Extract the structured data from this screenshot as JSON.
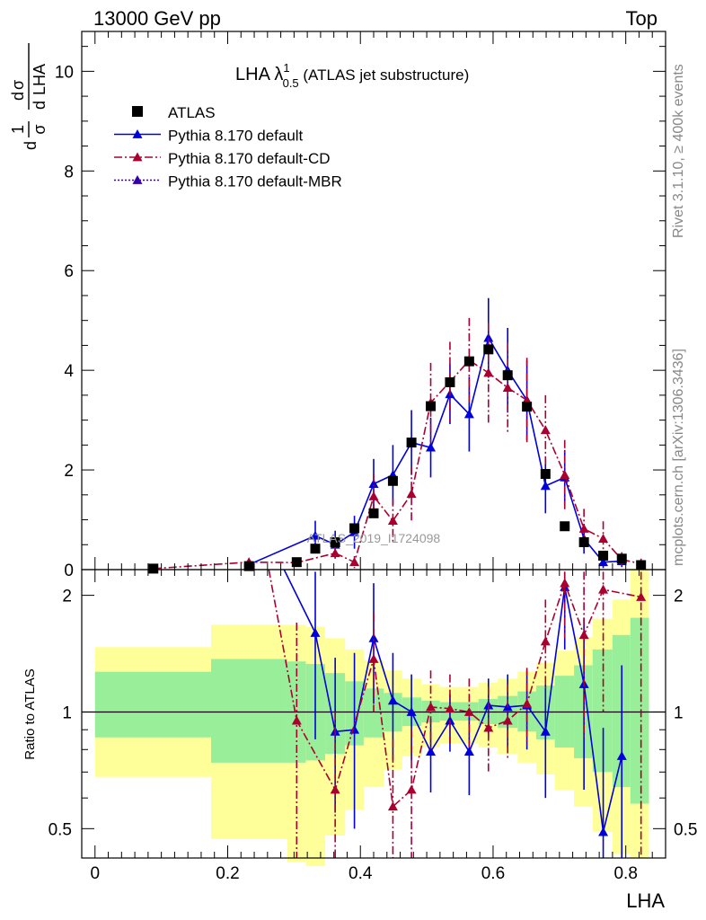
{
  "header": {
    "left": "13000 GeV pp",
    "right": "Top"
  },
  "side": {
    "rivet": "Rivet 3.1.10, ≥ 400k events",
    "mcplots": "mcplots.cern.ch [arXiv:1306.3436]"
  },
  "watermark": "ATLAS_2019_I1724098",
  "chart_data": {
    "type": "scatter",
    "title": "LHA λ",
    "title_sup": "1",
    "title_sub": "0.5",
    "title_suffix": " (ATLAS jet substructure)",
    "xlabel": "LHA",
    "ylabel": {
      "num_d": "d",
      "num_sigma": "σ",
      "prefix_1": "1",
      "prefix_sigma": "σ",
      "prefix_d": "d",
      "den_d": "d",
      "den_var": "LHA"
    },
    "ratio_ylabel": "Ratio to ATLAS",
    "xlim": [
      -0.02,
      0.86
    ],
    "ylim": [
      0,
      10.8
    ],
    "ratio_ylim": [
      0.42,
      2.33
    ],
    "x_ticks": [
      {
        "v": 0,
        "label": "0"
      },
      {
        "v": 0.2,
        "label": "0.2"
      },
      {
        "v": 0.4,
        "label": "0.4"
      },
      {
        "v": 0.6,
        "label": "0.6"
      },
      {
        "v": 0.8,
        "label": "0.8"
      }
    ],
    "y_ticks": [
      {
        "v": 0,
        "label": "0"
      },
      {
        "v": 2,
        "label": "2"
      },
      {
        "v": 4,
        "label": "4"
      },
      {
        "v": 6,
        "label": "6"
      },
      {
        "v": 8,
        "label": "8"
      },
      {
        "v": 10,
        "label": "10"
      }
    ],
    "ratio_ticks": [
      {
        "v": 0.5,
        "label": "0.5"
      },
      {
        "v": 1,
        "label": "1"
      },
      {
        "v": 2,
        "label": "2"
      }
    ],
    "legend": [
      {
        "label": "ATLAS",
        "color": "#000000",
        "style": "square"
      },
      {
        "label": "Pythia 8.170 default",
        "color": "#0000dd",
        "style": "solid"
      },
      {
        "label": "Pythia 8.170 default-CD",
        "color": "#aa0030",
        "style": "dashdot"
      },
      {
        "label": "Pythia 8.170 default-MBR",
        "color": "#3300aa",
        "style": "dotted"
      }
    ],
    "bands": [
      {
        "x0": 0.0,
        "x1": 0.175,
        "y_lo": 0.68,
        "y_hi": 1.47,
        "g_lo": 0.86,
        "g_hi": 1.27
      },
      {
        "x0": 0.175,
        "x1": 0.29,
        "y_lo": 0.47,
        "y_hi": 1.68,
        "g_lo": 0.74,
        "g_hi": 1.37
      },
      {
        "x0": 0.29,
        "x1": 0.318,
        "y_lo": 0.41,
        "y_hi": 1.68,
        "g_lo": 0.74,
        "g_hi": 1.35
      },
      {
        "x0": 0.318,
        "x1": 0.347,
        "y_lo": 0.4,
        "y_hi": 1.66,
        "g_lo": 0.75,
        "g_hi": 1.33
      },
      {
        "x0": 0.347,
        "x1": 0.377,
        "y_lo": 0.48,
        "y_hi": 1.55,
        "g_lo": 0.78,
        "g_hi": 1.26
      },
      {
        "x0": 0.377,
        "x1": 0.405,
        "y_lo": 0.56,
        "y_hi": 1.45,
        "g_lo": 0.82,
        "g_hi": 1.2
      },
      {
        "x0": 0.405,
        "x1": 0.435,
        "y_lo": 0.64,
        "y_hi": 1.36,
        "g_lo": 0.86,
        "g_hi": 1.15
      },
      {
        "x0": 0.435,
        "x1": 0.463,
        "y_lo": 0.71,
        "y_hi": 1.28,
        "g_lo": 0.89,
        "g_hi": 1.12
      },
      {
        "x0": 0.463,
        "x1": 0.492,
        "y_lo": 0.77,
        "y_hi": 1.22,
        "g_lo": 0.92,
        "g_hi": 1.09
      },
      {
        "x0": 0.492,
        "x1": 0.52,
        "y_lo": 0.81,
        "y_hi": 1.18,
        "g_lo": 0.94,
        "g_hi": 1.07
      },
      {
        "x0": 0.52,
        "x1": 0.55,
        "y_lo": 0.83,
        "y_hi": 1.16,
        "g_lo": 0.95,
        "g_hi": 1.06
      },
      {
        "x0": 0.55,
        "x1": 0.578,
        "y_lo": 0.83,
        "y_hi": 1.16,
        "g_lo": 0.95,
        "g_hi": 1.06
      },
      {
        "x0": 0.578,
        "x1": 0.607,
        "y_lo": 0.81,
        "y_hi": 1.19,
        "g_lo": 0.93,
        "g_hi": 1.08
      },
      {
        "x0": 0.607,
        "x1": 0.637,
        "y_lo": 0.78,
        "y_hi": 1.22,
        "g_lo": 0.91,
        "g_hi": 1.1
      },
      {
        "x0": 0.637,
        "x1": 0.665,
        "y_lo": 0.74,
        "y_hi": 1.27,
        "g_lo": 0.89,
        "g_hi": 1.13
      },
      {
        "x0": 0.665,
        "x1": 0.693,
        "y_lo": 0.69,
        "y_hi": 1.34,
        "g_lo": 0.85,
        "g_hi": 1.17
      },
      {
        "x0": 0.693,
        "x1": 0.722,
        "y_lo": 0.63,
        "y_hi": 1.44,
        "g_lo": 0.81,
        "g_hi": 1.24
      },
      {
        "x0": 0.722,
        "x1": 0.75,
        "y_lo": 0.57,
        "y_hi": 1.56,
        "g_lo": 0.76,
        "g_hi": 1.32
      },
      {
        "x0": 0.75,
        "x1": 0.78,
        "y_lo": 0.49,
        "y_hi": 1.74,
        "g_lo": 0.7,
        "g_hi": 1.45
      },
      {
        "x0": 0.78,
        "x1": 0.807,
        "y_lo": 0.43,
        "y_hi": 1.95,
        "g_lo": 0.64,
        "g_hi": 1.58
      },
      {
        "x0": 0.807,
        "x1": 0.835,
        "y_lo": 0.42,
        "y_hi": 2.33,
        "g_lo": 0.58,
        "g_hi": 1.75
      }
    ],
    "atlas": [
      {
        "x": 0.088,
        "y": 0.02
      },
      {
        "x": 0.232,
        "y": 0.07
      },
      {
        "x": 0.304,
        "y": 0.15
      },
      {
        "x": 0.332,
        "y": 0.42
      },
      {
        "x": 0.362,
        "y": 0.55
      },
      {
        "x": 0.391,
        "y": 0.83
      },
      {
        "x": 0.42,
        "y": 1.13
      },
      {
        "x": 0.449,
        "y": 1.78
      },
      {
        "x": 0.477,
        "y": 2.55
      },
      {
        "x": 0.506,
        "y": 3.28
      },
      {
        "x": 0.535,
        "y": 3.76
      },
      {
        "x": 0.564,
        "y": 4.18
      },
      {
        "x": 0.593,
        "y": 4.42
      },
      {
        "x": 0.622,
        "y": 3.9
      },
      {
        "x": 0.651,
        "y": 3.27
      },
      {
        "x": 0.679,
        "y": 1.92
      },
      {
        "x": 0.708,
        "y": 0.87
      },
      {
        "x": 0.737,
        "y": 0.55
      },
      {
        "x": 0.766,
        "y": 0.28
      },
      {
        "x": 0.794,
        "y": 0.22
      },
      {
        "x": 0.823,
        "y": 0.09
      }
    ],
    "series": [
      {
        "name": "Pythia 8.170 default",
        "color": "#0000dd",
        "dash": "",
        "points": [
          {
            "x": 0.232,
            "y": 0.1,
            "e": 0.03
          },
          {
            "x": 0.332,
            "y": 0.68,
            "e": 0.3
          },
          {
            "x": 0.362,
            "y": 0.5,
            "e": 0.28
          },
          {
            "x": 0.391,
            "y": 0.75,
            "e": 0.33
          },
          {
            "x": 0.42,
            "y": 1.72,
            "e": 0.5
          },
          {
            "x": 0.449,
            "y": 1.9,
            "e": 0.6
          },
          {
            "x": 0.477,
            "y": 2.55,
            "e": 0.65
          },
          {
            "x": 0.506,
            "y": 2.45,
            "e": 0.6
          },
          {
            "x": 0.535,
            "y": 3.52,
            "e": 0.6
          },
          {
            "x": 0.564,
            "y": 3.12,
            "e": 0.75
          },
          {
            "x": 0.593,
            "y": 4.65,
            "e": 0.8
          },
          {
            "x": 0.622,
            "y": 4.0,
            "e": 0.85
          },
          {
            "x": 0.651,
            "y": 3.4,
            "e": 0.8
          },
          {
            "x": 0.679,
            "y": 1.68,
            "e": 0.55
          },
          {
            "x": 0.708,
            "y": 1.85,
            "e": 0.55
          },
          {
            "x": 0.737,
            "y": 0.62,
            "e": 0.3
          },
          {
            "x": 0.766,
            "y": 0.15,
            "e": 0.12
          },
          {
            "x": 0.794,
            "y": 0.17,
            "e": 0.12
          }
        ],
        "ratio": [
          {
            "x": 0.332,
            "y": 1.6,
            "lo": 0.85,
            "hi": 2.3
          },
          {
            "x": 0.362,
            "y": 0.89,
            "lo": 0.55,
            "hi": 1.38
          },
          {
            "x": 0.391,
            "y": 0.9,
            "lo": 0.5,
            "hi": 1.42
          },
          {
            "x": 0.42,
            "y": 1.55,
            "lo": 1.05,
            "hi": 2.15
          },
          {
            "x": 0.449,
            "y": 1.07,
            "lo": 0.75,
            "hi": 1.42
          },
          {
            "x": 0.477,
            "y": 1.0,
            "lo": 0.75,
            "hi": 1.25
          },
          {
            "x": 0.506,
            "y": 0.79,
            "lo": 0.62,
            "hi": 0.96
          },
          {
            "x": 0.535,
            "y": 0.95,
            "lo": 0.79,
            "hi": 1.11
          },
          {
            "x": 0.564,
            "y": 0.79,
            "lo": 0.61,
            "hi": 0.97
          },
          {
            "x": 0.593,
            "y": 1.04,
            "lo": 0.86,
            "hi": 1.22
          },
          {
            "x": 0.622,
            "y": 1.03,
            "lo": 0.81,
            "hi": 1.25
          },
          {
            "x": 0.651,
            "y": 1.04,
            "lo": 0.8,
            "hi": 1.28
          },
          {
            "x": 0.679,
            "y": 0.89,
            "lo": 0.6,
            "hi": 1.18
          },
          {
            "x": 0.708,
            "y": 2.1,
            "lo": 1.45,
            "hi": 2.3
          },
          {
            "x": 0.737,
            "y": 1.18,
            "lo": 0.63,
            "hi": 1.75
          },
          {
            "x": 0.766,
            "y": 0.49,
            "lo": 0.42,
            "hi": 0.91
          },
          {
            "x": 0.794,
            "y": 0.77,
            "lo": 0.42,
            "hi": 1.32
          }
        ]
      },
      {
        "name": "Pythia 8.170 default-CD",
        "color": "#aa0030",
        "dash": "9,3,2,3",
        "points": [
          {
            "x": 0.088,
            "y": 0.02,
            "e": 0.01
          },
          {
            "x": 0.232,
            "y": 0.15,
            "e": 0.05
          },
          {
            "x": 0.304,
            "y": 0.14,
            "e": 0.08
          },
          {
            "x": 0.362,
            "y": 0.33,
            "e": 0.15
          },
          {
            "x": 0.391,
            "y": 0.15,
            "e": 0.12
          },
          {
            "x": 0.42,
            "y": 1.47,
            "e": 0.45
          },
          {
            "x": 0.449,
            "y": 0.98,
            "e": 0.45
          },
          {
            "x": 0.477,
            "y": 1.52,
            "e": 0.55
          },
          {
            "x": 0.506,
            "y": 3.35,
            "e": 0.8
          },
          {
            "x": 0.535,
            "y": 3.77,
            "e": 0.8
          },
          {
            "x": 0.564,
            "y": 4.2,
            "e": 0.85
          },
          {
            "x": 0.593,
            "y": 3.95,
            "e": 1.0
          },
          {
            "x": 0.622,
            "y": 3.65,
            "e": 0.9
          },
          {
            "x": 0.651,
            "y": 3.4,
            "e": 0.85
          },
          {
            "x": 0.679,
            "y": 2.8,
            "e": 0.7
          },
          {
            "x": 0.708,
            "y": 1.9,
            "e": 0.7
          },
          {
            "x": 0.737,
            "y": 0.82,
            "e": 0.4
          },
          {
            "x": 0.766,
            "y": 0.62,
            "e": 0.35
          },
          {
            "x": 0.794,
            "y": 0.2,
            "e": 0.15
          },
          {
            "x": 0.823,
            "y": 0.12,
            "e": 0.1
          }
        ],
        "ratio": [
          {
            "x": 0.304,
            "y": 0.95,
            "lo": 0.42,
            "hi": 1.7
          },
          {
            "x": 0.362,
            "y": 0.63,
            "lo": 0.42,
            "hi": 1.0
          },
          {
            "x": 0.42,
            "y": 1.37,
            "lo": 1.0,
            "hi": 1.8
          },
          {
            "x": 0.449,
            "y": 0.57,
            "lo": 0.42,
            "hi": 0.85
          },
          {
            "x": 0.477,
            "y": 0.63,
            "lo": 0.42,
            "hi": 0.9
          },
          {
            "x": 0.506,
            "y": 1.03,
            "lo": 0.8,
            "hi": 1.28
          },
          {
            "x": 0.535,
            "y": 1.02,
            "lo": 0.82,
            "hi": 1.25
          },
          {
            "x": 0.564,
            "y": 1.0,
            "lo": 0.8,
            "hi": 1.22
          },
          {
            "x": 0.593,
            "y": 0.91,
            "lo": 0.7,
            "hi": 1.16
          },
          {
            "x": 0.622,
            "y": 0.95,
            "lo": 0.75,
            "hi": 1.18
          },
          {
            "x": 0.651,
            "y": 1.05,
            "lo": 0.82,
            "hi": 1.3
          },
          {
            "x": 0.679,
            "y": 1.52,
            "lo": 1.15,
            "hi": 1.95
          },
          {
            "x": 0.708,
            "y": 2.15,
            "lo": 1.55,
            "hi": 2.3
          },
          {
            "x": 0.737,
            "y": 1.58,
            "lo": 0.85,
            "hi": 2.3
          },
          {
            "x": 0.766,
            "y": 2.07,
            "lo": 1.0,
            "hi": 2.3
          },
          {
            "x": 0.823,
            "y": 1.98,
            "lo": 0.42,
            "hi": 2.3
          }
        ]
      }
    ]
  }
}
